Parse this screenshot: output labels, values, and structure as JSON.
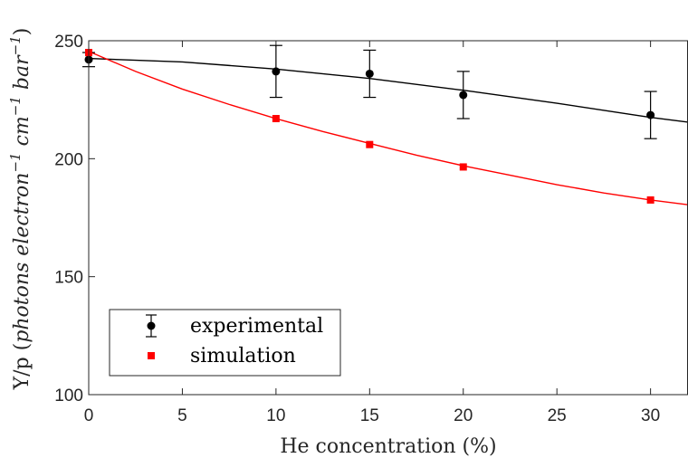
{
  "chart_data": {
    "type": "scatter",
    "xlabel": "He concentration (%)",
    "ylabel_parts": [
      "Y/p (",
      "photons electron",
      "−1",
      " cm",
      "−1",
      " bar",
      "−1",
      ")"
    ],
    "xlim": [
      0,
      32
    ],
    "ylim": [
      100,
      250
    ],
    "xticks": [
      0,
      5,
      10,
      15,
      20,
      25,
      30
    ],
    "yticks": [
      100,
      150,
      200,
      250
    ],
    "legend_position": "bottom-left",
    "series": [
      {
        "name": "experimental",
        "marker": "circle",
        "color": "#000000",
        "x": [
          0,
          10,
          15,
          20,
          30
        ],
        "y": [
          242,
          237,
          236,
          227,
          218.5
        ],
        "err": [
          3,
          11,
          10,
          10,
          10
        ],
        "fit": {
          "x": [
            0,
            5,
            10,
            15,
            20,
            25,
            30,
            32
          ],
          "y": [
            242.5,
            241,
            238,
            234,
            229,
            223.5,
            217.5,
            215.5
          ]
        }
      },
      {
        "name": "simulation",
        "marker": "square",
        "color": "#ff0000",
        "x": [
          0,
          10,
          15,
          20,
          30
        ],
        "y": [
          245,
          217,
          206,
          196.5,
          182.5
        ],
        "fit": {
          "x": [
            0,
            2.5,
            5,
            7.5,
            10,
            12.5,
            15,
            17.5,
            20,
            22.5,
            25,
            27.5,
            30,
            32
          ],
          "y": [
            245.5,
            237,
            229.5,
            223,
            217,
            211.5,
            206.5,
            201.5,
            197,
            193,
            189,
            185.5,
            182.5,
            180.5
          ]
        }
      }
    ]
  }
}
